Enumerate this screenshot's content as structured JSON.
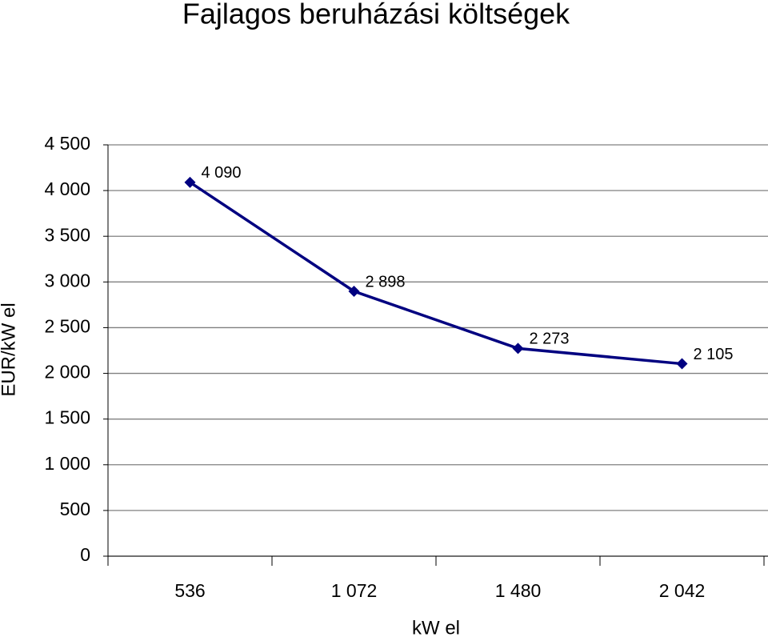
{
  "chart_data": {
    "type": "line",
    "title": "Fajlagos beruházási költségek",
    "x_label": "kW el",
    "y_label": "EUR/kW el",
    "categories": [
      "536",
      "1 072",
      "1 480",
      "2 042"
    ],
    "series": [
      {
        "name": "EUR/kW el",
        "color": "#000080",
        "values": [
          4090,
          2898,
          2273,
          2105
        ],
        "value_labels": [
          "4 090",
          "2 898",
          "2 273",
          "2 105"
        ]
      }
    ],
    "ylim": [
      0,
      4500
    ],
    "yticks": [
      0,
      500,
      {
        "value": 1000,
        "label": "1 000"
      },
      {
        "value": 1500,
        "label": "1 500"
      },
      {
        "value": 2000,
        "label": "2 000"
      },
      {
        "value": 2500,
        "label": "2 500"
      },
      {
        "value": 3000,
        "label": "3 000"
      },
      {
        "value": 3500,
        "label": "3 500"
      },
      {
        "value": 4000,
        "label": "4 000"
      },
      {
        "value": 4500,
        "label": "4 500"
      }
    ],
    "grid": true
  }
}
